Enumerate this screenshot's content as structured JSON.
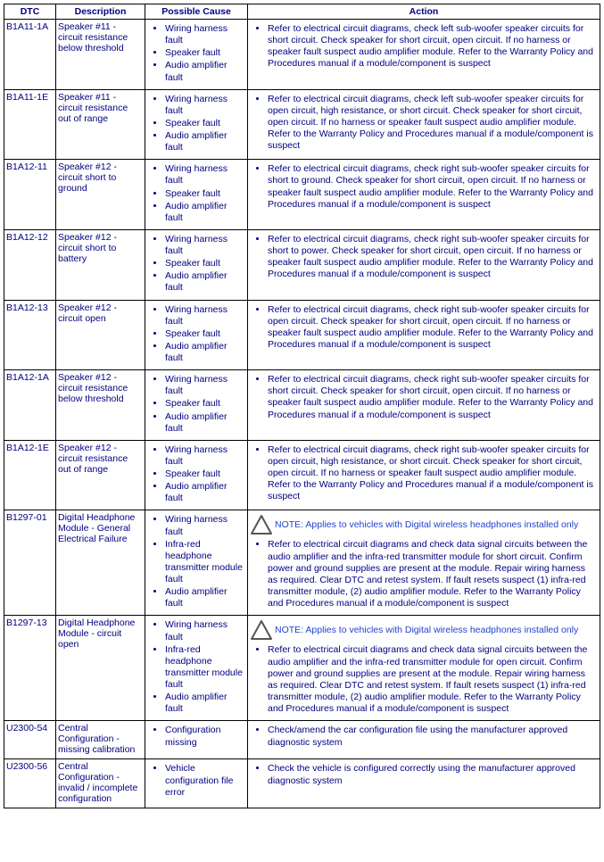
{
  "columns": [
    "DTC",
    "Description",
    "Possible Cause",
    "Action"
  ],
  "common_causes": {
    "wiring3": [
      "Wiring harness fault",
      "Speaker fault",
      "Audio amplifier fault"
    ],
    "headphone": [
      "Wiring harness fault",
      "Infra-red headphone transmitter module fault",
      "Audio amplifier fault"
    ],
    "config_missing": [
      "Configuration missing"
    ],
    "vehicle_cfg": [
      "Vehicle configuration file error"
    ]
  },
  "note_text": "NOTE: Applies to vehicles with Digital wireless headphones installed only",
  "rows": [
    {
      "dtc": "B1A11-1A",
      "desc": "Speaker #11 - circuit resistance below threshold",
      "cause_key": "wiring3",
      "action": "Refer to electrical circuit diagrams, check left sub-woofer speaker circuits for short circuit. Check speaker for short circuit, open circuit. If no harness or speaker fault suspect audio amplifier module. Refer to the Warranty Policy and Procedures manual if a module/component is suspect"
    },
    {
      "dtc": "B1A11-1E",
      "desc": "Speaker #11 - circuit resistance out of range",
      "cause_key": "wiring3",
      "action": "Refer to electrical circuit diagrams, check left sub-woofer speaker circuits for open circuit, high resistance, or short circuit. Check speaker for short circuit, open circuit. If no harness or speaker fault suspect audio amplifier module. Refer to the Warranty Policy and Procedures manual if a module/component is suspect"
    },
    {
      "dtc": "B1A12-11",
      "desc": "Speaker #12 - circuit short to ground",
      "cause_key": "wiring3",
      "action": "Refer to electrical circuit diagrams, check right sub-woofer speaker circuits for short to ground. Check speaker for short circuit, open circuit. If no harness or speaker fault suspect audio amplifier module. Refer to the Warranty Policy and Procedures manual if a module/component is suspect"
    },
    {
      "dtc": "B1A12-12",
      "desc": "Speaker #12 - circuit short to battery",
      "cause_key": "wiring3",
      "action": "Refer to electrical circuit diagrams, check right sub-woofer speaker circuits for short to power. Check speaker for short circuit, open circuit. If no harness or speaker fault suspect audio amplifier module. Refer to the Warranty Policy and Procedures manual if a module/component is suspect"
    },
    {
      "dtc": "B1A12-13",
      "desc": "Speaker #12 - circuit open",
      "cause_key": "wiring3",
      "action": "Refer to electrical circuit diagrams, check right sub-woofer speaker circuits for open circuit. Check speaker for short circuit, open circuit. If no harness or speaker fault suspect audio amplifier module. Refer to the Warranty Policy and Procedures manual if a module/component is suspect"
    },
    {
      "dtc": "B1A12-1A",
      "desc": "Speaker #12 - circuit resistance below threshold",
      "cause_key": "wiring3",
      "action": "Refer to electrical circuit diagrams, check right sub-woofer speaker circuits for short circuit. Check speaker for short circuit, open circuit. If no harness or speaker fault suspect audio amplifier module. Refer to the Warranty Policy and Procedures manual if a module/component is suspect"
    },
    {
      "dtc": "B1A12-1E",
      "desc": "Speaker #12 - circuit resistance out of range",
      "cause_key": "wiring3",
      "action": "Refer to electrical circuit diagrams, check right sub-woofer speaker circuits for open circuit, high resistance, or short circuit. Check speaker for short circuit, open circuit. If no harness or speaker fault suspect audio amplifier module. Refer to the Warranty Policy and Procedures manual if a module/component is suspect"
    },
    {
      "dtc": "B1297-01",
      "desc": "Digital Headphone Module - General Electrical Failure",
      "cause_key": "headphone",
      "note": true,
      "action": "Refer to electrical circuit diagrams and check data signal circuits between the audio amplifier and the infra-red transmitter module for short circuit. Confirm power and ground supplies are present at the module. Repair wiring harness as required. Clear DTC and retest system. If fault resets suspect (1) infra-red transmitter module, (2) audio amplifier module. Refer to the Warranty Policy and Procedures manual if a module/component is suspect"
    },
    {
      "dtc": "B1297-13",
      "desc": "Digital Headphone Module - circuit open",
      "cause_key": "headphone",
      "note": true,
      "action": "Refer to electrical circuit diagrams and check data signal circuits between the audio amplifier and the infra-red transmitter module for open circuit. Confirm power and ground supplies are present at the module. Repair wiring harness as required. Clear DTC and retest system. If fault resets suspect (1) infra-red transmitter module, (2) audio amplifier module. Refer to the Warranty Policy and Procedures manual if a module/component is suspect"
    },
    {
      "dtc": "U2300-54",
      "desc": "Central Configuration - missing calibration",
      "cause_key": "config_missing",
      "action": "Check/amend the car configuration file using the manufacturer approved diagnostic system"
    },
    {
      "dtc": "U2300-56",
      "desc": "Central Configuration - invalid / incomplete configuration",
      "cause_key": "vehicle_cfg",
      "action": "Check the vehicle is configured correctly using the manufacturer approved diagnostic system"
    }
  ]
}
